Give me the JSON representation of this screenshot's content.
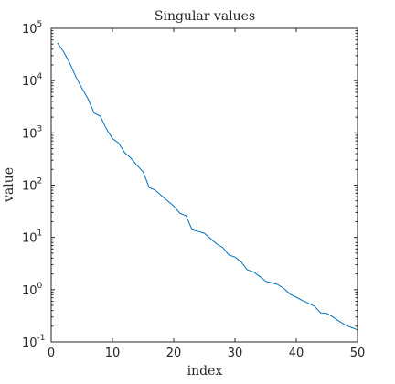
{
  "chart_data": {
    "type": "line",
    "title": "Singular values",
    "xlabel": "index",
    "ylabel": "value",
    "xlim": [
      0,
      50
    ],
    "ylim": [
      0.1,
      100000
    ],
    "yscale": "log",
    "grid": false,
    "xticks": [
      0,
      10,
      20,
      30,
      40,
      50
    ],
    "yticks": [
      {
        "base": "10",
        "exp": "-1",
        "value": 0.1
      },
      {
        "base": "10",
        "exp": "0",
        "value": 1
      },
      {
        "base": "10",
        "exp": "1",
        "value": 10
      },
      {
        "base": "10",
        "exp": "2",
        "value": 100
      },
      {
        "base": "10",
        "exp": "3",
        "value": 1000
      },
      {
        "base": "10",
        "exp": "4",
        "value": 10000
      },
      {
        "base": "10",
        "exp": "5",
        "value": 100000
      }
    ],
    "series": [
      {
        "color": "#0072bd",
        "x": [
          1,
          2,
          3,
          4,
          5,
          6,
          7,
          8,
          9,
          10,
          11,
          12,
          13,
          14,
          15,
          16,
          17,
          18,
          19,
          20,
          21,
          22,
          23,
          24,
          25,
          26,
          27,
          28,
          29,
          30,
          31,
          32,
          33,
          34,
          35,
          36,
          37,
          38,
          39,
          40,
          41,
          42,
          43,
          44,
          45,
          46,
          47,
          48,
          49,
          50
        ],
        "y": [
          53000,
          36000,
          22000,
          12000,
          7200,
          4500,
          2400,
          2100,
          1200,
          780,
          640,
          420,
          330,
          240,
          180,
          90,
          80,
          63,
          50,
          40,
          29,
          26,
          14,
          13,
          12,
          9.5,
          7.5,
          6.4,
          4.6,
          4.2,
          3.4,
          2.4,
          2.2,
          1.8,
          1.45,
          1.35,
          1.25,
          1.05,
          0.82,
          0.72,
          0.62,
          0.55,
          0.48,
          0.36,
          0.35,
          0.3,
          0.25,
          0.21,
          0.19,
          0.17
        ]
      }
    ]
  }
}
